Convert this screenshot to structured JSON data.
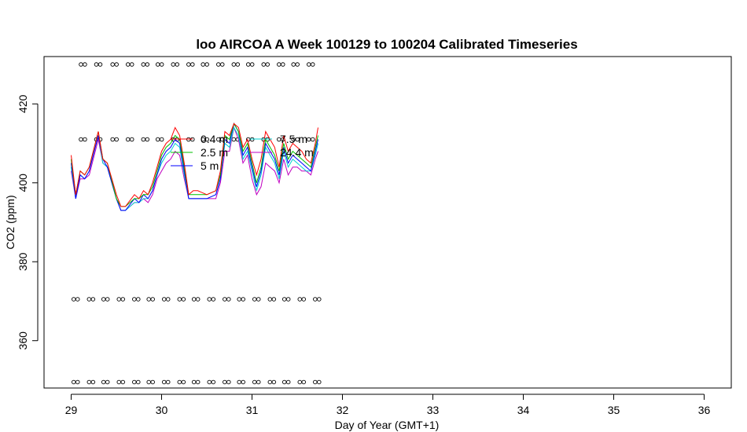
{
  "chart_data": {
    "type": "line",
    "title": "loo AIRCOA A  Week 100129 to 100204  Calibrated Timeseries",
    "xlabel": "Day of Year (GMT+1)",
    "ylabel": "CO2 (ppm)",
    "xlim": [
      28.7,
      36.3
    ],
    "ylim": [
      348,
      432
    ],
    "xticks": [
      29,
      30,
      31,
      32,
      33,
      34,
      35,
      36
    ],
    "yticks": [
      360,
      380,
      400,
      420
    ],
    "grid": false,
    "legend_placement": "top-center",
    "series": [
      {
        "name": "0.4 m",
        "color": "#ff0000",
        "x": [
          29.0,
          29.05,
          29.1,
          29.15,
          29.2,
          29.3,
          29.35,
          29.4,
          29.5,
          29.55,
          29.6,
          29.7,
          29.75,
          29.8,
          29.85,
          29.9,
          29.95,
          30.0,
          30.05,
          30.1,
          30.15,
          30.2,
          30.25,
          30.3,
          30.35,
          30.4,
          30.5,
          30.6,
          30.65,
          30.7,
          30.75,
          30.8,
          30.85,
          30.9,
          30.95,
          31.0,
          31.05,
          31.1,
          31.15,
          31.2,
          31.25,
          31.3,
          31.35,
          31.4,
          31.45,
          31.5,
          31.55,
          31.6,
          31.65,
          31.7,
          31.73
        ],
        "values": [
          407,
          397,
          403,
          402,
          404,
          413,
          406,
          405,
          397,
          394,
          394,
          397,
          396,
          398,
          397,
          400,
          404,
          408,
          410,
          411,
          414,
          412,
          405,
          397,
          398,
          398,
          397,
          398,
          403,
          413,
          412,
          415,
          414,
          409,
          411,
          406,
          402,
          406,
          413,
          411,
          409,
          404,
          412,
          408,
          410,
          409,
          408,
          406,
          405,
          410,
          414
        ]
      },
      {
        "name": "2.5 m",
        "color": "#00c000",
        "x": [
          29.0,
          29.05,
          29.1,
          29.15,
          29.2,
          29.3,
          29.35,
          29.4,
          29.5,
          29.55,
          29.6,
          29.7,
          29.75,
          29.8,
          29.85,
          29.9,
          29.95,
          30.0,
          30.05,
          30.1,
          30.15,
          30.2,
          30.25,
          30.3,
          30.35,
          30.4,
          30.5,
          30.6,
          30.65,
          30.7,
          30.75,
          30.8,
          30.85,
          30.9,
          30.95,
          31.0,
          31.05,
          31.1,
          31.15,
          31.2,
          31.25,
          31.3,
          31.35,
          31.4,
          31.45,
          31.5,
          31.55,
          31.6,
          31.65,
          31.7,
          31.73
        ],
        "values": [
          406,
          397,
          403,
          402,
          404,
          413,
          406,
          405,
          396,
          394,
          394,
          396,
          396,
          397,
          397,
          399,
          403,
          407,
          409,
          410,
          412,
          411,
          404,
          397,
          397,
          397,
          397,
          398,
          402,
          412,
          411,
          415,
          413,
          408,
          410,
          405,
          400,
          404,
          411,
          409,
          407,
          403,
          410,
          406,
          408,
          407,
          406,
          405,
          404,
          409,
          412
        ]
      },
      {
        "name": "5 m",
        "color": "#0000ff",
        "x": [
          29.0,
          29.05,
          29.1,
          29.15,
          29.2,
          29.3,
          29.35,
          29.4,
          29.5,
          29.55,
          29.6,
          29.7,
          29.75,
          29.8,
          29.85,
          29.9,
          29.95,
          30.0,
          30.05,
          30.1,
          30.15,
          30.2,
          30.25,
          30.3,
          30.35,
          30.4,
          30.5,
          30.6,
          30.65,
          30.7,
          30.75,
          30.8,
          30.85,
          30.9,
          30.95,
          31.0,
          31.05,
          31.1,
          31.15,
          31.2,
          31.25,
          31.3,
          31.35,
          31.4,
          31.45,
          31.5,
          31.55,
          31.6,
          31.65,
          31.7,
          31.73
        ],
        "values": [
          405,
          396,
          402,
          401,
          403,
          412,
          406,
          404,
          396,
          393,
          393,
          396,
          395,
          397,
          396,
          398,
          402,
          406,
          408,
          409,
          411,
          410,
          403,
          396,
          396,
          396,
          396,
          397,
          401,
          411,
          410,
          415,
          413,
          407,
          409,
          404,
          399,
          403,
          410,
          408,
          406,
          402,
          409,
          405,
          407,
          406,
          405,
          404,
          403,
          408,
          411
        ]
      },
      {
        "name": "7.5 m",
        "color": "#00d0d0",
        "x": [
          29.0,
          29.05,
          29.1,
          29.15,
          29.2,
          29.3,
          29.35,
          29.4,
          29.5,
          29.55,
          29.6,
          29.7,
          29.75,
          29.8,
          29.85,
          29.9,
          29.95,
          30.0,
          30.05,
          30.1,
          30.15,
          30.2,
          30.25,
          30.3,
          30.35,
          30.4,
          30.5,
          30.6,
          30.65,
          30.7,
          30.75,
          30.8,
          30.85,
          30.9,
          30.95,
          31.0,
          31.05,
          31.1,
          31.15,
          31.2,
          31.25,
          31.3,
          31.35,
          31.4,
          31.45,
          31.5,
          31.55,
          31.6,
          31.65,
          31.7,
          31.73
        ],
        "values": [
          404,
          396,
          402,
          401,
          403,
          412,
          405,
          404,
          396,
          393,
          393,
          395,
          395,
          396,
          396,
          398,
          402,
          405,
          407,
          408,
          410,
          409,
          402,
          396,
          396,
          396,
          396,
          397,
          401,
          410,
          409,
          414,
          412,
          406,
          408,
          403,
          398,
          402,
          409,
          407,
          405,
          401,
          408,
          404,
          406,
          405,
          404,
          403,
          403,
          407,
          410
        ]
      },
      {
        "name": "24.4 m",
        "color": "#c000c0",
        "x": [
          29.0,
          29.05,
          29.1,
          29.15,
          29.2,
          29.3,
          29.35,
          29.4,
          29.5,
          29.55,
          29.6,
          29.7,
          29.75,
          29.8,
          29.85,
          29.9,
          29.95,
          30.0,
          30.05,
          30.1,
          30.15,
          30.2,
          30.25,
          30.3,
          30.35,
          30.4,
          30.5,
          30.6,
          30.65,
          30.7,
          30.75,
          30.8,
          30.85,
          30.9,
          30.95,
          31.0,
          31.05,
          31.1,
          31.15,
          31.2,
          31.25,
          31.3,
          31.35,
          31.4,
          31.45,
          31.5,
          31.55,
          31.6,
          31.65,
          31.7,
          31.73
        ],
        "values": [
          403,
          396,
          401,
          401,
          402,
          411,
          405,
          404,
          396,
          393,
          393,
          395,
          395,
          396,
          395,
          397,
          401,
          403,
          405,
          406,
          408,
          407,
          401,
          396,
          396,
          396,
          396,
          396,
          400,
          408,
          408,
          414,
          411,
          405,
          407,
          401,
          397,
          399,
          405,
          404,
          403,
          400,
          406,
          402,
          404,
          404,
          403,
          403,
          402,
          406,
          408
        ]
      }
    ],
    "marker_rows": [
      {
        "y": 430,
        "x": [
          29.13,
          29.3,
          29.48,
          29.65,
          29.82,
          29.98,
          30.15,
          30.32,
          30.48,
          30.65,
          30.82,
          30.98,
          31.15,
          31.32,
          31.48,
          31.65
        ]
      },
      {
        "y": 411,
        "x": [
          29.13,
          29.3,
          29.48,
          29.65,
          29.82,
          29.98,
          30.15,
          30.32,
          30.48,
          30.65,
          30.82,
          30.98,
          31.15,
          31.32,
          31.48,
          31.65
        ]
      },
      {
        "y": 370.5,
        "x": [
          29.05,
          29.22,
          29.38,
          29.55,
          29.72,
          29.88,
          30.05,
          30.22,
          30.38,
          30.55,
          30.72,
          30.88,
          31.05,
          31.22,
          31.38,
          31.55,
          31.72
        ]
      },
      {
        "y": 349.5,
        "x": [
          29.05,
          29.22,
          29.38,
          29.55,
          29.72,
          29.88,
          30.05,
          30.22,
          30.38,
          30.55,
          30.72,
          30.88,
          31.05,
          31.22,
          31.38,
          31.55,
          31.72
        ]
      }
    ]
  }
}
